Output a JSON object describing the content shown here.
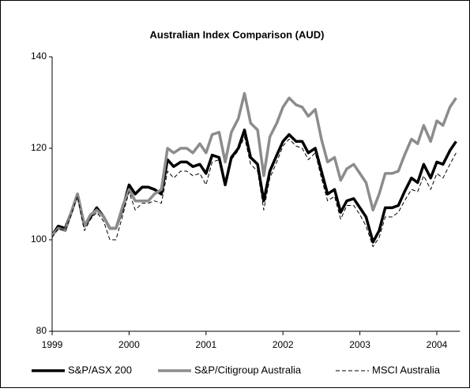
{
  "chart_data": {
    "type": "line",
    "title": "Australian Index Comparison (AUD)",
    "x": [
      1999,
      1999.08,
      1999.17,
      1999.25,
      1999.33,
      1999.42,
      1999.5,
      1999.58,
      1999.67,
      1999.75,
      1999.83,
      1999.92,
      2000,
      2000.08,
      2000.17,
      2000.25,
      2000.33,
      2000.42,
      2000.5,
      2000.58,
      2000.67,
      2000.75,
      2000.83,
      2000.92,
      2001,
      2001.08,
      2001.17,
      2001.25,
      2001.33,
      2001.42,
      2001.5,
      2001.58,
      2001.67,
      2001.75,
      2001.83,
      2001.92,
      2002,
      2002.08,
      2002.17,
      2002.25,
      2002.33,
      2002.42,
      2002.5,
      2002.58,
      2002.67,
      2002.75,
      2002.83,
      2002.92,
      2003,
      2003.08,
      2003.17,
      2003.25,
      2003.33,
      2003.42,
      2003.5,
      2003.58,
      2003.67,
      2003.75,
      2003.83,
      2003.92,
      2004,
      2004.08,
      2004.17,
      2004.25
    ],
    "series": [
      {
        "name": "S&P/ASX 200",
        "color": "#000000",
        "style": "solid",
        "width": 3.5,
        "values": [
          101,
          103,
          102.5,
          106,
          110,
          103,
          105,
          107,
          105,
          102.5,
          102.5,
          107,
          112,
          110,
          111.5,
          111.5,
          111,
          110,
          117.5,
          116,
          117,
          117,
          116,
          116.5,
          114.5,
          118.5,
          118,
          112,
          118,
          120,
          124,
          118,
          116.5,
          108.5,
          115,
          118.5,
          121.5,
          123,
          121.5,
          121.5,
          119,
          120,
          115,
          110,
          111,
          106,
          108.5,
          109,
          107,
          105,
          99.5,
          102,
          107,
          107,
          107.5,
          110.5,
          113.5,
          112.5,
          116.5,
          113.5,
          117,
          116.5,
          119.5,
          121.5
        ]
      },
      {
        "name": "S&P/Citigroup Australia",
        "color": "#8c8c8c",
        "style": "solid",
        "width": 3.5,
        "values": [
          101,
          102.5,
          102,
          106,
          110,
          103,
          105.5,
          106.5,
          105,
          102.5,
          102.5,
          107.5,
          111,
          108.5,
          108.5,
          108.5,
          110,
          111,
          120,
          119,
          120,
          120,
          119,
          121,
          119,
          123,
          123.5,
          117,
          123.5,
          126.5,
          132,
          125.5,
          124,
          114,
          122.5,
          125.5,
          129,
          131,
          129.5,
          129,
          127,
          128.5,
          122,
          117,
          118,
          113,
          115.5,
          116.5,
          114.5,
          112.5,
          106.5,
          110,
          114.5,
          114.5,
          115,
          118.5,
          122,
          121,
          125,
          121.5,
          126,
          125,
          129,
          131
        ]
      },
      {
        "name": "MSCI Australia",
        "color": "#000000",
        "style": "dashed",
        "width": 1,
        "values": [
          100.5,
          102.5,
          102,
          105.5,
          109.5,
          102,
          104.5,
          106,
          104,
          100,
          100,
          105.5,
          110.5,
          106.5,
          108,
          108,
          108.5,
          108,
          115,
          113.5,
          115,
          115,
          114,
          114.5,
          112,
          117,
          117.5,
          112,
          117.5,
          119.5,
          122.5,
          116.5,
          115,
          106.5,
          113.5,
          117,
          120.5,
          122,
          120.5,
          120,
          117.5,
          119,
          113.5,
          108.5,
          109.5,
          104.5,
          107.5,
          107.5,
          105.5,
          103,
          98.5,
          100.5,
          105,
          105,
          106,
          108.5,
          111,
          110.5,
          114,
          111,
          114.5,
          113.5,
          116.5,
          119
        ]
      }
    ],
    "xlim": [
      1999,
      2004.3
    ],
    "xticks": [
      1999,
      2000,
      2001,
      2002,
      2003,
      2004
    ],
    "ylim": [
      80,
      140
    ],
    "yticks": [
      80,
      100,
      120,
      140
    ],
    "grid": false,
    "legend": "bottom"
  }
}
